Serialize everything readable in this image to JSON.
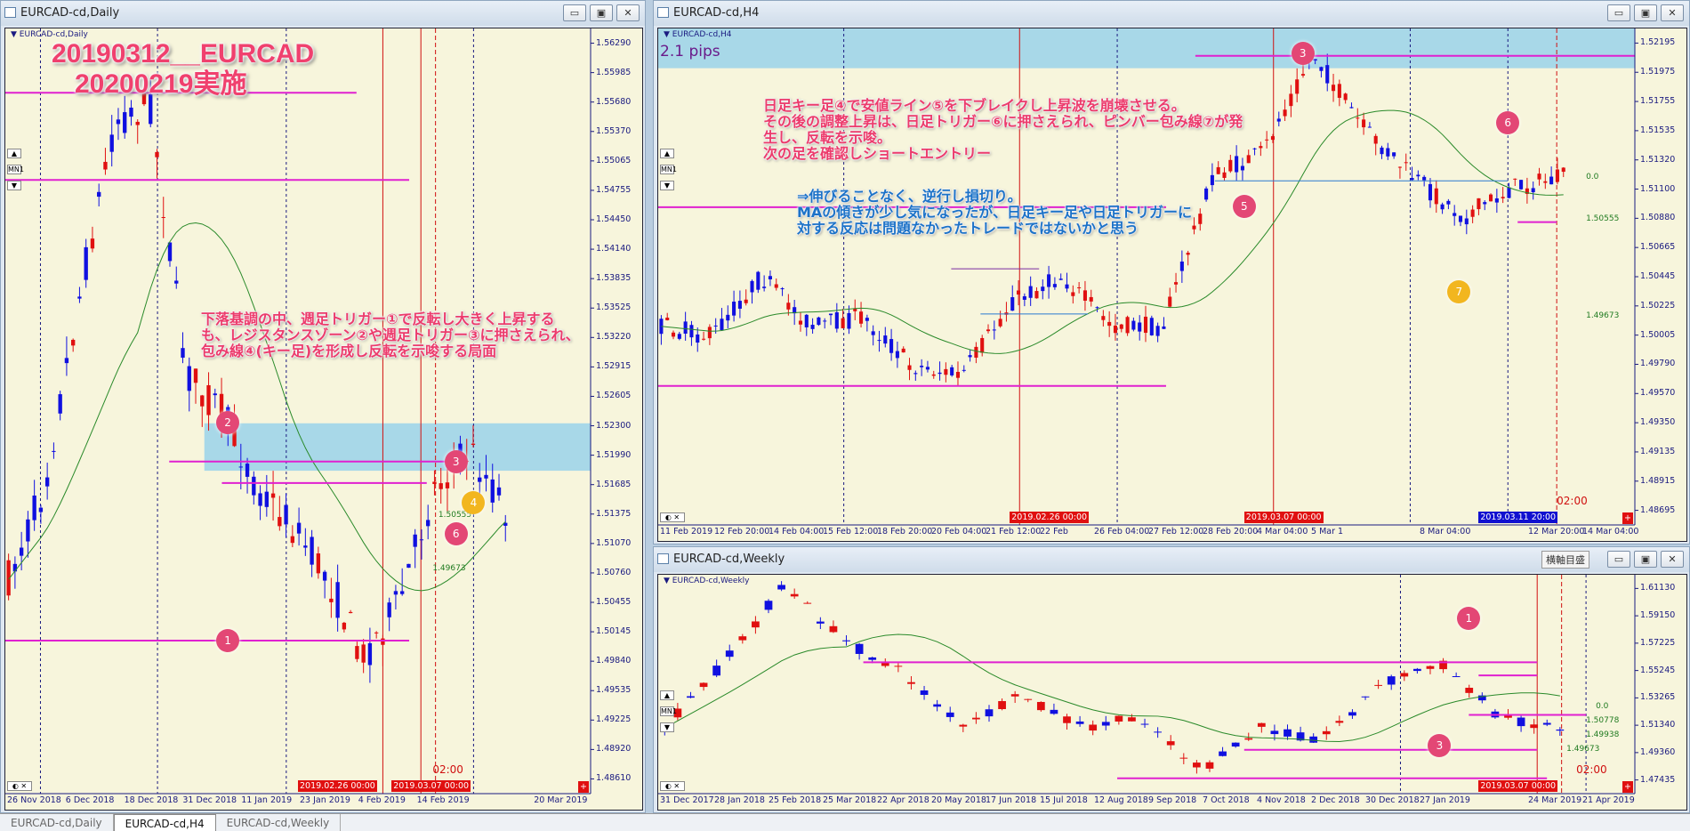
{
  "tabs": [
    "EURCAD-cd,Daily",
    "EURCAD-cd,H4",
    "EURCAD-cd,Weekly"
  ],
  "active_tab": 1,
  "daily": {
    "title": "EURCAD-cd,Daily",
    "symbol": "EURCAD-cd,Daily",
    "overlay_title": [
      "20190312__EURCAD",
      "20200219実施"
    ],
    "note": "下落基調の中、週足トリガー①で反転し大きく上昇する\nも、レジスタンスゾーン②や週足トリガー③に押さえられ、\n包み線④(キー足)を形成し反転を示唆する局面",
    "prices": [
      "1.56290",
      "1.55985",
      "1.55680",
      "1.55370",
      "1.55065",
      "1.54755",
      "1.54450",
      "1.54140",
      "1.53835",
      "1.53525",
      "1.53220",
      "1.52915",
      "1.52605",
      "1.52300",
      "1.51990",
      "1.51685",
      "1.51375",
      "1.51070",
      "1.50760",
      "1.50455",
      "1.50145",
      "1.49840",
      "1.49535",
      "1.49225",
      "1.48920",
      "1.48610"
    ],
    "dates": [
      "26 Nov 2018",
      "6 Dec 2018",
      "18 Dec 2018",
      "31 Dec 2018",
      "11 Jan 2019",
      "23 Jan 2019",
      "4 Feb 2019",
      "14 Feb 2019",
      "",
      "20 Mar 2019"
    ],
    "tags_red": [
      "2019.02.26 00:00",
      "2019.03.07 00:00"
    ],
    "level_labels": [
      "1.50555",
      "1.49673"
    ],
    "time_left": "02:00",
    "markers": [
      "1",
      "2",
      "3",
      "4",
      "6"
    ]
  },
  "h4": {
    "title": "EURCAD-cd,H4",
    "symbol": "EURCAD-cd,H4",
    "pips": "2.1 pips",
    "note_pink": "日足キー足④で安値ライン⑤を下ブレイクし上昇波を崩壊させる。\nその後の調整上昇は、日足トリガー⑥に押さえられ、ピンバー包み線⑦が発\n生し、反転を示唆。\n次の足を確認しショートエントリー",
    "note_blue": "⇒伸びることなく、逆行し損切り。\nMAの傾きが少し気になったが、日足キー足や日足トリガーに\n対する反応は問題なかったトレードではないかと思う",
    "prices": [
      "1.52195",
      "1.51975",
      "1.51755",
      "1.51535",
      "1.51320",
      "1.51100",
      "1.50880",
      "1.50665",
      "1.50445",
      "1.50225",
      "1.50005",
      "1.49790",
      "1.49570",
      "1.49350",
      "1.49135",
      "1.48915",
      "1.48695"
    ],
    "dates": [
      "11 Feb 2019",
      "12 Feb 20:00",
      "14 Feb 04:00",
      "15 Feb 12:00",
      "18 Feb 20:00",
      "20 Feb 04:00",
      "21 Feb 12:00",
      "22 Feb",
      "26 Feb 04:00",
      "27 Feb 12:00",
      "28 Feb 20:00",
      "4 Mar 04:00",
      "5 Mar 1",
      "",
      "8 Mar 04:00",
      "",
      "12 Mar 20:00",
      "14 Mar 04:00"
    ],
    "tags_red": [
      "2019.02.26 00:00",
      "2019.03.07 00:00"
    ],
    "tag_blue": "2019.03.11 20:00",
    "level_labels": [
      "0.0",
      "1.50555",
      "1.49673"
    ],
    "time_left": "02:00",
    "markers": [
      "3",
      "5",
      "6",
      "7"
    ]
  },
  "weekly": {
    "title": "EURCAD-cd,Weekly",
    "symbol": "EURCAD-cd,Weekly",
    "button": "横軸目盛",
    "prices": [
      "1.61130",
      "1.59150",
      "1.57225",
      "1.55245",
      "1.53265",
      "1.51340",
      "1.49360",
      "1.47435"
    ],
    "dates": [
      "31 Dec 2017",
      "28 Jan 2018",
      "25 Feb 2018",
      "25 Mar 2018",
      "22 Apr 2018",
      "20 May 2018",
      "17 Jun 2018",
      "15 Jul 2018",
      "12 Aug 2018",
      "9 Sep 2018",
      "7 Oct 2018",
      "4 Nov 2018",
      "2 Dec 2018",
      "30 Dec 2018",
      "27 Jan 2019",
      "",
      "24 Mar 2019",
      "21 Apr 2019"
    ],
    "tags_red": [
      "2019.03.07 00:00"
    ],
    "level_labels": [
      "0.0",
      "1.50778",
      "1.49938",
      "1.49673"
    ],
    "time_left": "02:00",
    "markers": [
      "1",
      "3"
    ]
  },
  "colors": {
    "bull": "#1010e0",
    "bear": "#e01010",
    "ma": "#2a8a2a",
    "level": "#e020d0",
    "zone": "#a8d8e8",
    "bg": "#f7f5dc"
  }
}
